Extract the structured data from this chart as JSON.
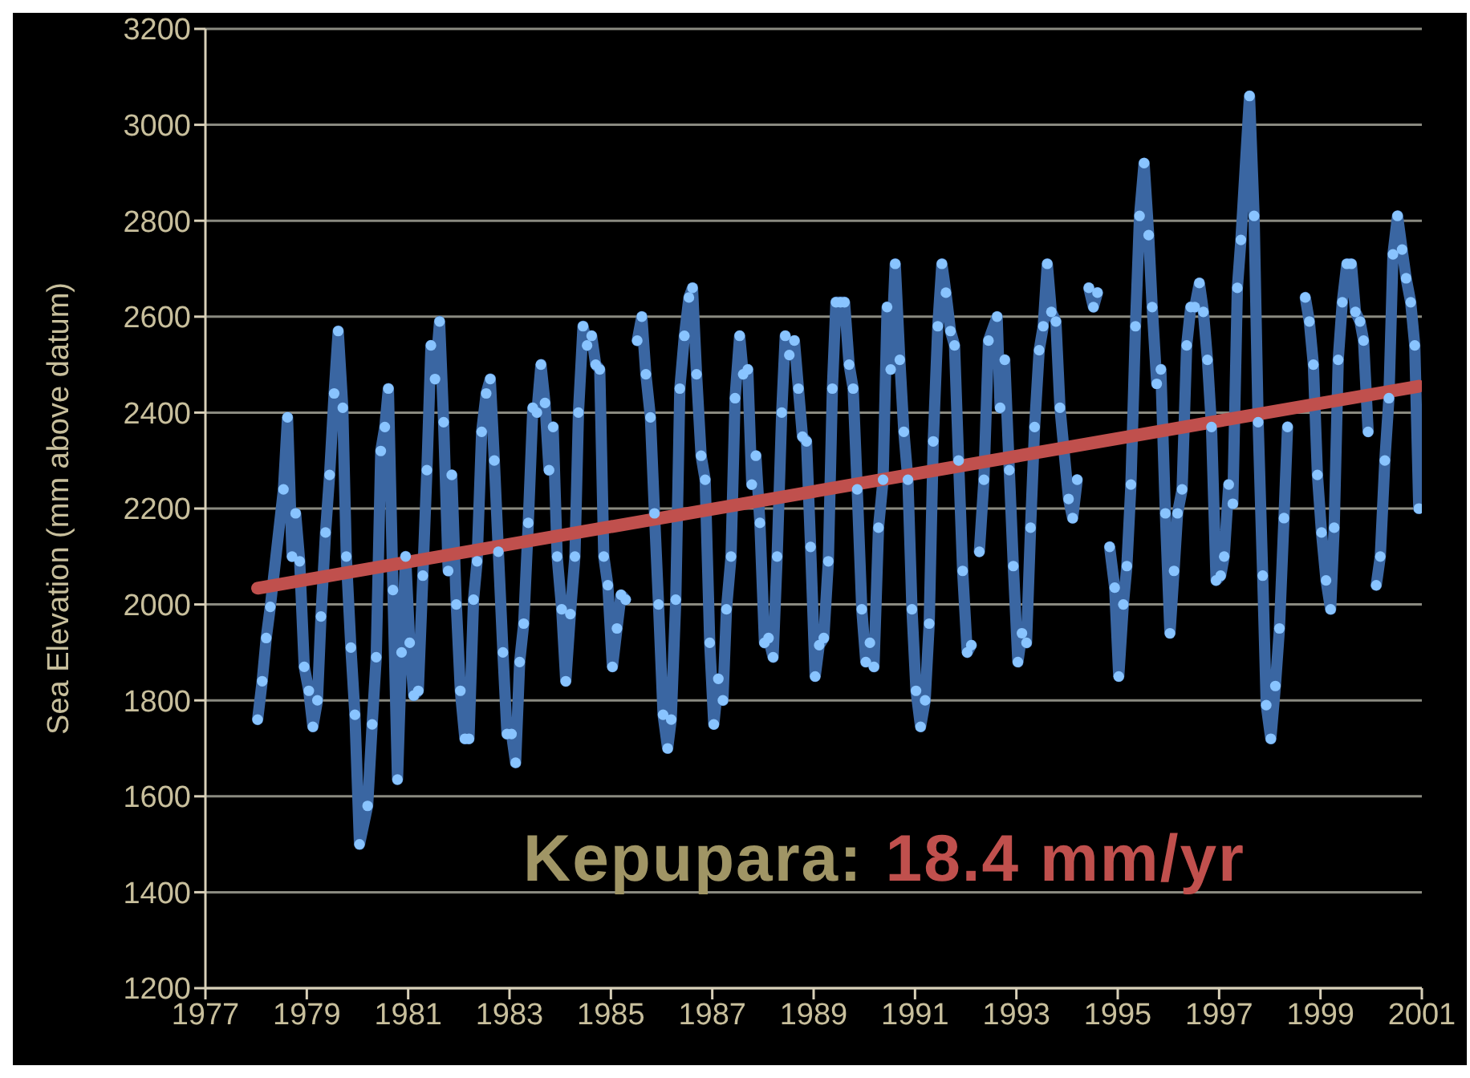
{
  "chart_data": {
    "type": "line",
    "ylabel": "Sea Elevation  (mm above datum)",
    "xlim": [
      1977,
      2001
    ],
    "xticks": [
      1977,
      1979,
      1981,
      1983,
      1985,
      1987,
      1989,
      1991,
      1993,
      1995,
      1997,
      1999,
      2001
    ],
    "ylim": [
      1200,
      3200
    ],
    "yticks": [
      1200,
      1400,
      1600,
      1800,
      2000,
      2200,
      2400,
      2600,
      2800,
      3000,
      3200
    ],
    "grid": "y",
    "marker": "circle",
    "line_style": "solid",
    "annotations": [
      "Kepupara:",
      "18.4 mm/yr"
    ],
    "series": [
      {
        "color": "#3a66a2",
        "x": [
          1978.03,
          1978.12,
          1978.2,
          1978.28,
          1978.54,
          1978.62,
          1978.71,
          1978.78,
          1978.86,
          1978.95,
          1979.04,
          1979.12,
          1979.21,
          1979.28,
          1979.37,
          1979.45,
          1979.54,
          1979.62,
          1979.71,
          1979.78,
          1979.87,
          1979.95,
          1980.04,
          1980.2,
          1980.29,
          1980.37,
          1980.46,
          1980.54,
          1980.61,
          1980.7,
          1980.79,
          1980.87,
          1980.95,
          1981.03,
          1981.11,
          1981.2,
          1981.29,
          1981.37,
          1981.45,
          1981.53,
          1981.62,
          1981.7,
          1981.79,
          1981.86,
          1981.95,
          1982.03,
          1982.12,
          1982.2,
          1982.29,
          1982.36,
          1982.45,
          1982.54,
          1982.62,
          1982.7,
          1982.78,
          1982.87,
          1982.95,
          1983.04,
          1983.12,
          1983.2,
          1983.28,
          1983.37,
          1983.46,
          1983.54,
          1983.62,
          1983.7,
          1983.78,
          1983.86,
          1983.94,
          1984.03,
          1984.11,
          1984.2,
          1984.29,
          1984.36,
          1984.45,
          1984.53,
          1984.62,
          1984.7,
          1984.78,
          1984.86,
          1984.94,
          1985.03,
          1985.12,
          1985.2,
          1985.29,
          1985.4,
          1985.52,
          1985.61,
          1985.69,
          1985.78,
          1985.86,
          1985.94,
          1986.03,
          1986.12,
          1986.19,
          1986.28,
          1986.36,
          1986.45,
          1986.54,
          1986.61,
          1986.69,
          1986.78,
          1986.86,
          1986.95,
          1987.03,
          1987.12,
          1987.21,
          1987.28,
          1987.37,
          1987.45,
          1987.54,
          1987.61,
          1987.7,
          1987.78,
          1987.86,
          1987.94,
          1988.03,
          1988.11,
          1988.2,
          1988.28,
          1988.37,
          1988.44,
          1988.52,
          1988.62,
          1988.7,
          1988.78,
          1988.86,
          1988.94,
          1989.03,
          1989.11,
          1989.2,
          1989.29,
          1989.37,
          1989.44,
          1989.53,
          1989.61,
          1989.7,
          1989.78,
          1989.86,
          1989.95,
          1990.03,
          1990.11,
          1990.19,
          1990.28,
          1990.37,
          1990.45,
          1990.52,
          1990.61,
          1990.7,
          1990.78,
          1990.86,
          1990.94,
          1991.02,
          1991.11,
          1991.2,
          1991.28,
          1991.36,
          1991.45,
          1991.53,
          1991.61,
          1991.7,
          1991.78,
          1991.86,
          1991.94,
          1992.03,
          1992.11,
          1992.19,
          1992.27,
          1992.36,
          1992.45,
          1992.62,
          1992.68,
          1992.77,
          1992.86,
          1992.94,
          1993.03,
          1993.11,
          1993.2,
          1993.28,
          1993.36,
          1993.45,
          1993.53,
          1993.61,
          1993.69,
          1993.78,
          1993.86,
          1994.03,
          1994.11,
          1994.2,
          1994.3,
          1994.43,
          1994.52,
          1994.6,
          1994.72,
          1994.84,
          1994.94,
          1995.02,
          1995.11,
          1995.18,
          1995.26,
          1995.35,
          1995.43,
          1995.52,
          1995.61,
          1995.68,
          1995.77,
          1995.85,
          1995.94,
          1996.03,
          1996.11,
          1996.18,
          1996.27,
          1996.36,
          1996.44,
          1996.52,
          1996.61,
          1996.69,
          1996.77,
          1996.85,
          1996.94,
          1997.03,
          1997.1,
          1997.19,
          1997.27,
          1997.36,
          1997.43,
          1997.6,
          1997.69,
          1997.77,
          1997.86,
          1997.93,
          1998.02,
          1998.11,
          1998.19,
          1998.28,
          1998.35,
          1998.5,
          1998.7,
          1998.78,
          1998.86,
          1998.94,
          1999.02,
          1999.11,
          1999.2,
          1999.27,
          1999.35,
          1999.43,
          1999.52,
          1999.61,
          1999.69,
          1999.78,
          1999.85,
          1999.94,
          2000.02,
          2000.1,
          2000.18,
          2000.27,
          2000.35,
          2000.43,
          2000.52,
          2000.61,
          2000.69,
          2000.78,
          2000.86,
          2000.94
        ],
        "values": [
          1760,
          1840,
          1930,
          1995,
          2240,
          2390,
          2100,
          2190,
          2090,
          1870,
          1820,
          1745,
          1800,
          1975,
          2150,
          2270,
          2440,
          2570,
          2410,
          2100,
          1910,
          1770,
          1500,
          1580,
          1750,
          1890,
          2320,
          2370,
          2450,
          2030,
          1635,
          1900,
          2100,
          1920,
          1810,
          1820,
          2060,
          2280,
          2540,
          2470,
          2590,
          2380,
          2070,
          2270,
          2000,
          1820,
          1720,
          1720,
          2010,
          2090,
          2360,
          2440,
          2470,
          2300,
          2110,
          1900,
          1730,
          1730,
          1670,
          1880,
          1960,
          2170,
          2410,
          2400,
          2500,
          2420,
          2280,
          2370,
          2100,
          1990,
          1840,
          1980,
          2100,
          2400,
          2580,
          2540,
          2560,
          2500,
          2490,
          2100,
          2040,
          1870,
          1950,
          2020,
          2010,
          null,
          2550,
          2600,
          2480,
          2390,
          2190,
          2000,
          1770,
          1700,
          1760,
          2010,
          2450,
          2560,
          2640,
          2660,
          2480,
          2310,
          2260,
          1920,
          1750,
          1845,
          1800,
          1990,
          2100,
          2430,
          2560,
          2480,
          2490,
          2250,
          2310,
          2170,
          1920,
          1930,
          1890,
          2100,
          2400,
          2560,
          2520,
          2550,
          2450,
          2350,
          2340,
          2120,
          1850,
          1915,
          1930,
          2090,
          2450,
          2630,
          2630,
          2630,
          2500,
          2450,
          2240,
          1990,
          1880,
          1920,
          1870,
          2160,
          2260,
          2620,
          2490,
          2710,
          2510,
          2360,
          2260,
          1990,
          1820,
          1745,
          1800,
          1960,
          2340,
          2580,
          2710,
          2650,
          2570,
          2540,
          2300,
          2070,
          1900,
          1915,
          null,
          2110,
          2260,
          2550,
          2600,
          2410,
          2510,
          2280,
          2080,
          1880,
          1940,
          1920,
          2160,
          2370,
          2530,
          2580,
          2710,
          2610,
          2590,
          2410,
          2220,
          2180,
          2260,
          null,
          2660,
          2620,
          2650,
          null,
          2120,
          2035,
          1850,
          2000,
          2080,
          2250,
          2580,
          2810,
          2920,
          2770,
          2620,
          2460,
          2490,
          2190,
          1940,
          2070,
          2190,
          2240,
          2540,
          2620,
          2620,
          2670,
          2610,
          2510,
          2370,
          2050,
          2060,
          2100,
          2250,
          2210,
          2660,
          2760,
          3060,
          2810,
          2380,
          2060,
          1790,
          1720,
          1830,
          1950,
          2180,
          2370,
          null,
          2640,
          2590,
          2500,
          2270,
          2150,
          2050,
          1990,
          2160,
          2510,
          2630,
          2710,
          2710,
          2610,
          2590,
          2550,
          2360,
          null,
          2040,
          2100,
          2300,
          2430,
          2730,
          2810,
          2740,
          2680,
          2630,
          2540,
          2200
        ]
      },
      {
        "type": "line",
        "color": "#c0504d",
        "marker": "none",
        "x": [
          1978.03,
          2000.94
        ],
        "values": [
          2034,
          2455
        ]
      }
    ]
  }
}
